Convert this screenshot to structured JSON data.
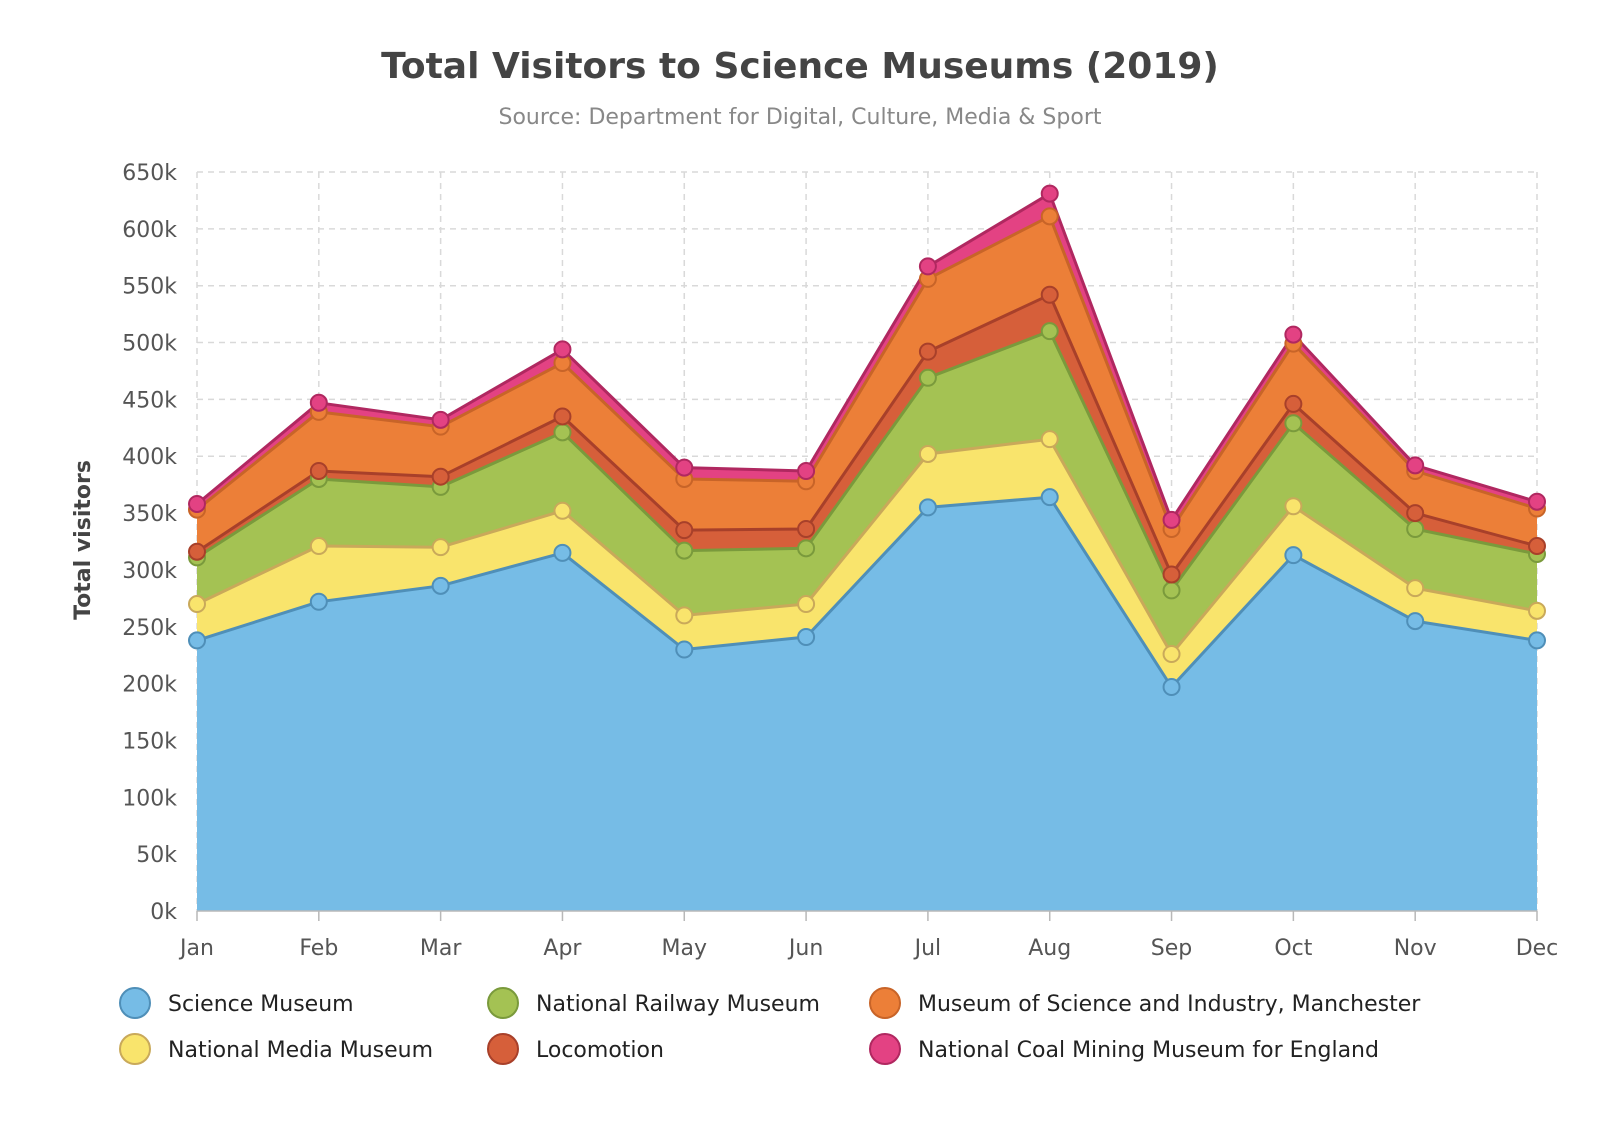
{
  "chart_data": {
    "type": "area",
    "stacked": true,
    "title": "Total Visitors to Science Museums (2019)",
    "subtitle": "Source: Department for Digital, Culture, Media & Sport",
    "xlabel": "",
    "ylabel": "Total visitors",
    "ylim": [
      0,
      650000
    ],
    "y_ticks": [
      0,
      50000,
      100000,
      150000,
      200000,
      250000,
      300000,
      350000,
      400000,
      450000,
      500000,
      550000,
      600000,
      650000
    ],
    "y_tick_labels": [
      "0k",
      "50k",
      "100k",
      "150k",
      "200k",
      "250k",
      "300k",
      "350k",
      "400k",
      "450k",
      "500k",
      "550k",
      "600k",
      "650k"
    ],
    "categories": [
      "Jan",
      "Feb",
      "Mar",
      "Apr",
      "May",
      "Jun",
      "Jul",
      "Aug",
      "Sep",
      "Oct",
      "Nov",
      "Dec"
    ],
    "grid": true,
    "legend_position": "bottom",
    "series": [
      {
        "name": "Science Museum",
        "color": "#76bce6",
        "line_color": "#4f8fb8",
        "values": [
          238000,
          272000,
          286000,
          315000,
          230000,
          241000,
          355000,
          364000,
          197000,
          313000,
          255000,
          238000
        ]
      },
      {
        "name": "National Media Museum",
        "color": "#f9e46c",
        "line_color": "#c9a95a",
        "values": [
          32000,
          49000,
          34000,
          37000,
          30000,
          29000,
          47000,
          51000,
          29000,
          43000,
          29000,
          26000
        ]
      },
      {
        "name": "National Railway Museum",
        "color": "#a4c253",
        "line_color": "#7a9a3c",
        "values": [
          41000,
          59000,
          53000,
          69000,
          57000,
          49000,
          67000,
          95000,
          56000,
          73000,
          52000,
          50000
        ]
      },
      {
        "name": "Locomotion",
        "color": "#d65f3a",
        "line_color": "#a8402a",
        "values": [
          5000,
          7000,
          9000,
          14000,
          18000,
          17000,
          23000,
          32000,
          14000,
          17000,
          14000,
          7000
        ]
      },
      {
        "name": "Museum of Science and Industry, Manchester",
        "color": "#ec7f38",
        "line_color": "#c86428",
        "values": [
          37000,
          52000,
          44000,
          47000,
          45000,
          42000,
          64000,
          69000,
          40000,
          53000,
          37000,
          33000
        ]
      },
      {
        "name": "National Coal Mining Museum for England",
        "color": "#e34283",
        "line_color": "#b02860",
        "values": [
          5000,
          8000,
          6000,
          12000,
          10000,
          9000,
          11000,
          20000,
          8000,
          8000,
          5000,
          6000
        ]
      }
    ]
  }
}
